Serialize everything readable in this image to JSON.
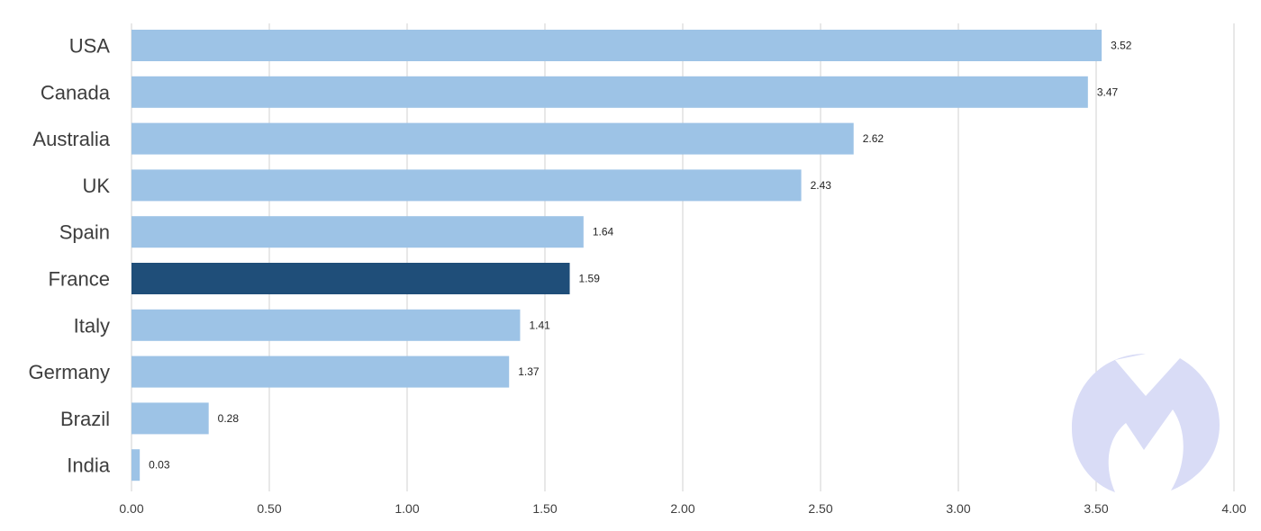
{
  "chart_data": {
    "type": "bar",
    "orientation": "horizontal",
    "title": "",
    "xlabel": "",
    "ylabel": "",
    "categories": [
      "USA",
      "Canada",
      "Australia",
      "UK",
      "Spain",
      "France",
      "Italy",
      "Germany",
      "Brazil",
      "India"
    ],
    "values": [
      3.52,
      3.47,
      2.62,
      2.43,
      1.64,
      1.59,
      1.41,
      1.37,
      0.28,
      0.03
    ],
    "value_labels": [
      "3.52",
      "3.47",
      "2.62",
      "2.43",
      "1.64",
      "1.59",
      "1.41",
      "1.37",
      "0.28",
      "0.03"
    ],
    "highlight_category": "France",
    "xlim": [
      0,
      4
    ],
    "xticks": [
      "0.00",
      "0.50",
      "1.00",
      "1.50",
      "2.00",
      "2.50",
      "3.00",
      "3.50",
      "4.00"
    ],
    "xtick_values": [
      0,
      0.5,
      1,
      1.5,
      2,
      2.5,
      3,
      3.5,
      4
    ],
    "grid": "vertical",
    "legend": "none",
    "colors": {
      "bar": "#9dc3e6",
      "highlight": "#1f4e79",
      "watermark": "#d9dcf6"
    }
  },
  "watermark": {
    "icon": "malwarebytes-logo-icon"
  }
}
